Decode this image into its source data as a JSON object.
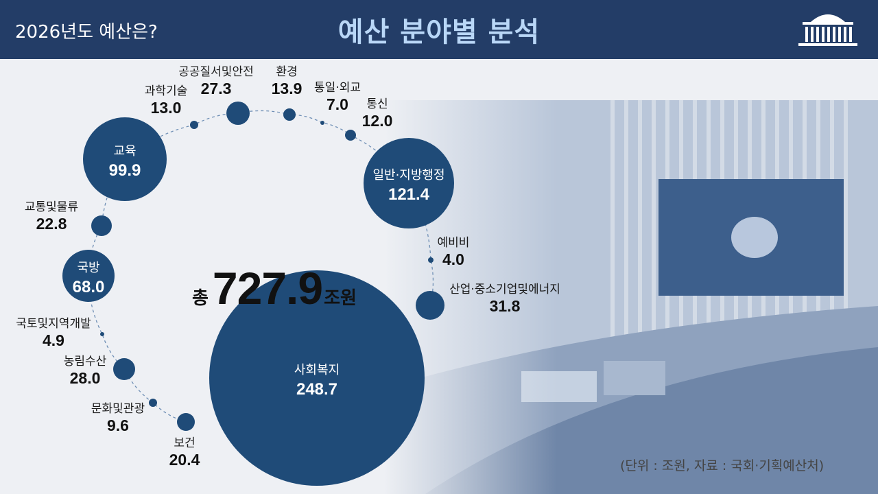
{
  "header": {
    "subtitle": "2026년도 예산은?",
    "title": "예산 분야별 분석"
  },
  "total": {
    "prefix": "총",
    "value": "727.9",
    "unit": "조원"
  },
  "source_note": "(단위 : 조원, 자료 : 국회·기획예산처)",
  "colors": {
    "header_bg": "#233d67",
    "title_text": "#b9d7f7",
    "bubble": "#1f4b78",
    "connector": "#6f8fb5"
  },
  "icons": [
    "national-assembly-logo-icon"
  ],
  "chart_data": {
    "type": "bubble",
    "title": "예산 분야별 분석",
    "unit": "조원",
    "total": 727.9,
    "items": [
      {
        "name": "교육",
        "value": 99.9
      },
      {
        "name": "과학기술",
        "value": 13.0
      },
      {
        "name": "공공질서및안전",
        "value": 27.3
      },
      {
        "name": "환경",
        "value": 13.9
      },
      {
        "name": "통일·외교",
        "value": 7.0
      },
      {
        "name": "통신",
        "value": 12.0
      },
      {
        "name": "일반·지방행정",
        "value": 121.4
      },
      {
        "name": "예비비",
        "value": 4.0
      },
      {
        "name": "산업·중소기업및에너지",
        "value": 31.8
      },
      {
        "name": "사회복지",
        "value": 248.7
      },
      {
        "name": "보건",
        "value": 20.4
      },
      {
        "name": "문화및관광",
        "value": 9.6
      },
      {
        "name": "농림수산",
        "value": 28.0
      },
      {
        "name": "국토및지역개발",
        "value": 4.9
      },
      {
        "name": "국방",
        "value": 68.0
      },
      {
        "name": "교통및물류",
        "value": 22.8
      }
    ]
  }
}
